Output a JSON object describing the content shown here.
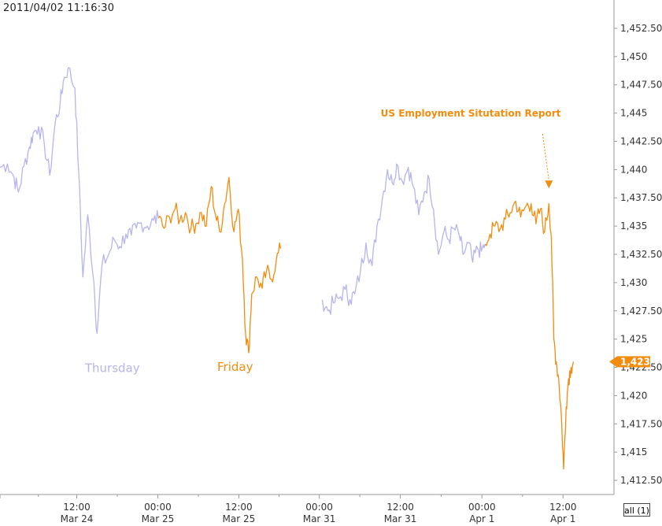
{
  "timestamp": "2011/04/02 11:16:30",
  "all_button_label": "all (1)",
  "colors": {
    "day_a": "#b7b4ee",
    "day_b": "#f28c0f",
    "axis": "#999999",
    "grid": "#dddddd"
  },
  "chart_data": {
    "type": "line",
    "ylim": [
      1411.25,
      1453.75
    ],
    "xlim": [
      0,
      100
    ],
    "y_ticks": [
      {
        "value": 1452.5,
        "label": "1,452.50"
      },
      {
        "value": 1450,
        "label": "1,450"
      },
      {
        "value": 1447.5,
        "label": "1,447.50"
      },
      {
        "value": 1445,
        "label": "1,445"
      },
      {
        "value": 1442.5,
        "label": "1,442.50"
      },
      {
        "value": 1440,
        "label": "1,440"
      },
      {
        "value": 1437.5,
        "label": "1,437.50"
      },
      {
        "value": 1435,
        "label": "1,435"
      },
      {
        "value": 1432.5,
        "label": "1,432.50"
      },
      {
        "value": 1430,
        "label": "1,430"
      },
      {
        "value": 1427.5,
        "label": "1,427.50"
      },
      {
        "value": 1425,
        "label": "1,425"
      },
      {
        "value": 1422.5,
        "label": "1,422.50"
      },
      {
        "value": 1420,
        "label": "1,420"
      },
      {
        "value": 1417.5,
        "label": "1,417.50"
      },
      {
        "value": 1415,
        "label": "1,415"
      },
      {
        "value": 1412.5,
        "label": "1,412.50"
      }
    ],
    "x_ticks": [
      {
        "pos": 0,
        "time": "",
        "date": ""
      },
      {
        "pos": 12.5,
        "time": "12:00",
        "date": "Mar 24"
      },
      {
        "pos": 25.7,
        "time": "00:00",
        "date": "Mar 25"
      },
      {
        "pos": 38.9,
        "time": "12:00",
        "date": "Mar 25"
      },
      {
        "pos": 52.0,
        "time": "00:00",
        "date": "Mar 31"
      },
      {
        "pos": 65.2,
        "time": "12:00",
        "date": "Mar 31"
      },
      {
        "pos": 78.5,
        "time": "00:00",
        "date": "Apr 1"
      },
      {
        "pos": 91.7,
        "time": "12:00",
        "date": "Apr 1"
      }
    ],
    "last_price_label": "1,423",
    "last_price": 1423,
    "series": [
      {
        "color_key": "day_a",
        "segments": [
          [
            [
              0,
              1440.2
            ],
            [
              1.2,
              1440.5
            ],
            [
              2.3,
              1439.3
            ],
            [
              3.0,
              1438.0
            ],
            [
              3.9,
              1440.3
            ],
            [
              4.8,
              1442.0
            ],
            [
              5.4,
              1443.2
            ],
            [
              6.3,
              1443.8
            ],
            [
              7.2,
              1442.3
            ],
            [
              8.1,
              1439.5
            ],
            [
              9.0,
              1444.2
            ],
            [
              9.8,
              1445.8
            ],
            [
              10.3,
              1447.8
            ],
            [
              11.1,
              1449.0
            ],
            [
              12.2,
              1447.2
            ],
            [
              12.8,
              1440.0
            ],
            [
              13.5,
              1430.5
            ],
            [
              14.3,
              1436.0
            ],
            [
              15.3,
              1430.0
            ],
            [
              15.8,
              1425.5
            ],
            [
              16.6,
              1431.5
            ],
            [
              17.7,
              1432.5
            ],
            [
              18.6,
              1433.8
            ],
            [
              19.5,
              1433.2
            ],
            [
              20.5,
              1434.3
            ],
            [
              21.4,
              1434.2
            ],
            [
              22.2,
              1434.8
            ],
            [
              23.0,
              1435.3
            ],
            [
              24.0,
              1435.0
            ],
            [
              25.0,
              1435.5
            ],
            [
              25.8,
              1435.7
            ]
          ],
          [
            [
              52.5,
              1428.5
            ],
            [
              53.4,
              1427.5
            ],
            [
              54.3,
              1428.2
            ],
            [
              55.2,
              1428.6
            ],
            [
              56.2,
              1429.4
            ],
            [
              57.0,
              1428.5
            ],
            [
              57.8,
              1429.0
            ],
            [
              58.7,
              1431.0
            ],
            [
              59.6,
              1433.5
            ],
            [
              60.6,
              1431.5
            ],
            [
              61.4,
              1435.0
            ],
            [
              62.3,
              1437.5
            ],
            [
              63.1,
              1440.0
            ],
            [
              63.9,
              1438.8
            ],
            [
              64.6,
              1440.5
            ],
            [
              65.5,
              1439.0
            ],
            [
              66.5,
              1440.2
            ],
            [
              67.3,
              1438.5
            ],
            [
              68.2,
              1436.0
            ],
            [
              69.1,
              1438.0
            ],
            [
              69.9,
              1439.2
            ],
            [
              70.6,
              1436.5
            ],
            [
              71.4,
              1432.5
            ],
            [
              72.3,
              1434.5
            ],
            [
              73.1,
              1433.8
            ],
            [
              73.9,
              1434.8
            ],
            [
              74.8,
              1434.2
            ],
            [
              75.4,
              1432.5
            ],
            [
              76.3,
              1433.5
            ],
            [
              77.0,
              1431.8
            ],
            [
              77.8,
              1433.0
            ],
            [
              78.4,
              1432.8
            ],
            [
              79.0,
              1433.4
            ]
          ]
        ]
      },
      {
        "color_key": "day_b",
        "segments": [
          [
            [
              25.8,
              1435.7
            ],
            [
              26.7,
              1434.8
            ],
            [
              27.6,
              1435.8
            ],
            [
              28.5,
              1436.5
            ],
            [
              29.3,
              1435.5
            ],
            [
              30.2,
              1436.2
            ],
            [
              31.1,
              1434.8
            ],
            [
              31.9,
              1435.2
            ],
            [
              32.8,
              1436.2
            ],
            [
              33.6,
              1435.0
            ],
            [
              34.4,
              1438.5
            ],
            [
              35.1,
              1436.0
            ],
            [
              35.8,
              1434.5
            ],
            [
              36.6,
              1437.0
            ],
            [
              37.3,
              1439.3
            ],
            [
              38.1,
              1434.5
            ],
            [
              38.8,
              1436.5
            ],
            [
              39.5,
              1432.0
            ],
            [
              40.0,
              1425.5
            ],
            [
              40.5,
              1423.8
            ],
            [
              41.0,
              1429.0
            ],
            [
              41.8,
              1430.5
            ],
            [
              42.7,
              1429.5
            ],
            [
              43.4,
              1431.0
            ],
            [
              44.2,
              1430.3
            ],
            [
              45.0,
              1432.0
            ],
            [
              45.7,
              1433.0
            ]
          ],
          [
            [
              79.0,
              1433.4
            ],
            [
              79.8,
              1434.3
            ],
            [
              80.6,
              1435.0
            ],
            [
              81.5,
              1434.8
            ],
            [
              82.3,
              1435.6
            ],
            [
              83.1,
              1436.2
            ],
            [
              84.0,
              1437.2
            ],
            [
              84.8,
              1435.8
            ],
            [
              85.7,
              1436.8
            ],
            [
              86.5,
              1437.0
            ],
            [
              87.3,
              1435.2
            ],
            [
              88.0,
              1436.5
            ],
            [
              88.7,
              1434.5
            ],
            [
              89.4,
              1437.0
            ],
            [
              89.8,
              1434.0
            ],
            [
              90.2,
              1425.0
            ],
            [
              90.6,
              1423.0
            ],
            [
              91.0,
              1421.5
            ],
            [
              91.4,
              1418.5
            ],
            [
              91.8,
              1413.5
            ],
            [
              92.2,
              1419.0
            ],
            [
              92.6,
              1421.5
            ],
            [
              93.0,
              1422.5
            ],
            [
              93.4,
              1423.0
            ]
          ]
        ]
      }
    ],
    "annotations": [
      {
        "text": "US Employment Situtation Report",
        "color_key": "day_b",
        "arrow_to": {
          "x": 89.4,
          "y": 1438.2
        }
      },
      {
        "text": "Thursday",
        "color_key": "day_a",
        "anchor": {
          "x": 18.3,
          "y": 1422.1
        }
      },
      {
        "text": "Friday",
        "color_key": "day_b",
        "anchor": {
          "x": 38.3,
          "y": 1422.2
        }
      }
    ]
  }
}
